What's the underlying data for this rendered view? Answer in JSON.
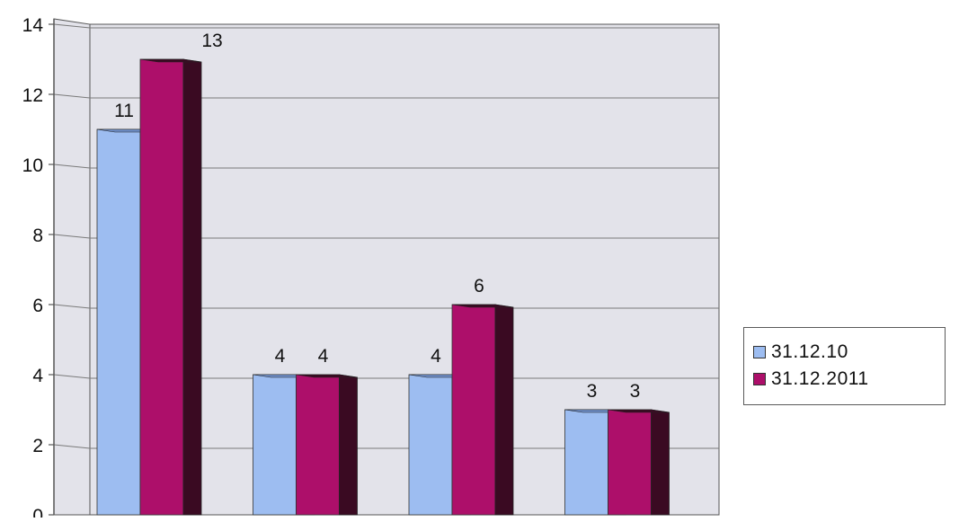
{
  "chart_data": {
    "type": "bar",
    "title": "",
    "xlabel": "",
    "ylabel": "",
    "categories": [
      "",
      "",
      "",
      ""
    ],
    "ylim": [
      0,
      14
    ],
    "yticks": [
      0,
      2,
      4,
      6,
      8,
      10,
      12,
      14
    ],
    "grid": true,
    "legend_position": "right",
    "series": [
      {
        "name": "31.12.10",
        "values": [
          11,
          4,
          4,
          3
        ],
        "color": "#9dbdf1",
        "side_color": "#6f8fc9"
      },
      {
        "name": "31.12.2011",
        "values": [
          13,
          4,
          6,
          3
        ],
        "color": "#ad0f6a",
        "side_color": "#3a0a22"
      }
    ],
    "colors": {
      "wall": "#e3e3ea",
      "grid": "#7a7a7a",
      "axis": "#555555"
    }
  }
}
